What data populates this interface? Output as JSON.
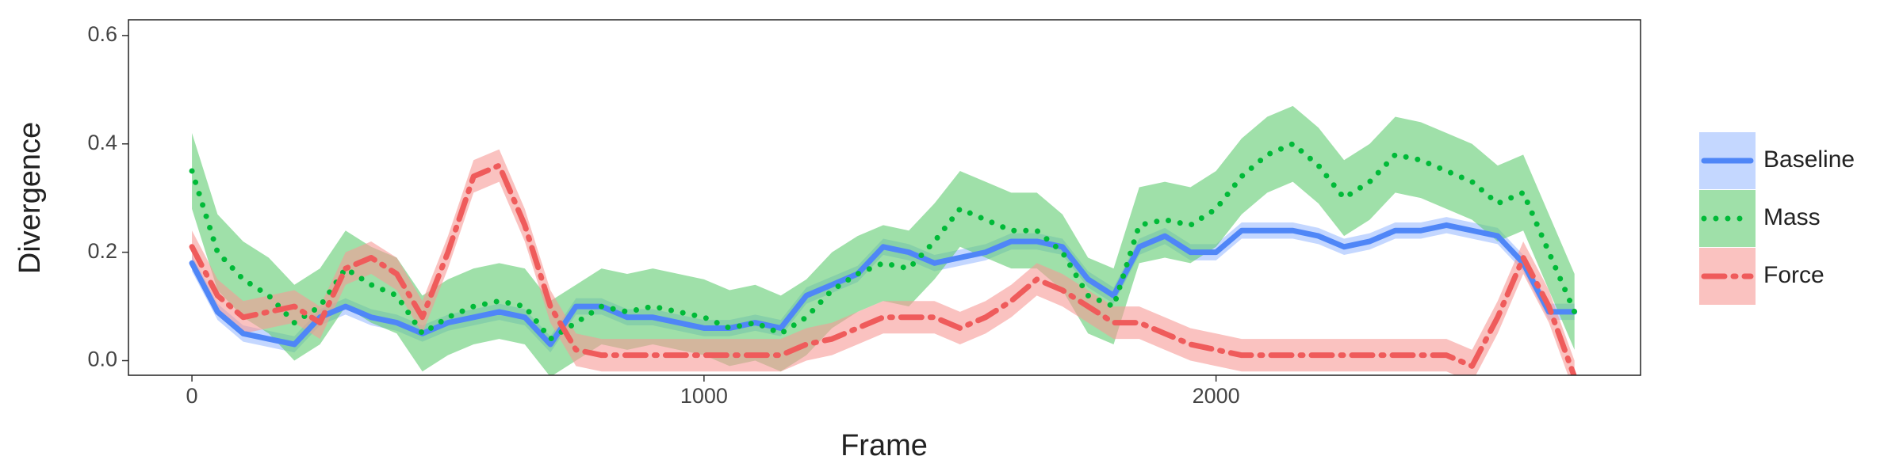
{
  "chart_data": {
    "type": "line",
    "x_label": "Frame",
    "y_label": "Divergence",
    "x": [
      0,
      50,
      100,
      150,
      200,
      250,
      300,
      350,
      400,
      450,
      500,
      550,
      600,
      650,
      700,
      750,
      800,
      850,
      900,
      950,
      1000,
      1050,
      1100,
      1150,
      1200,
      1250,
      1300,
      1350,
      1400,
      1450,
      1500,
      1550,
      1600,
      1650,
      1700,
      1750,
      1800,
      1850,
      1900,
      1950,
      2000,
      2050,
      2100,
      2150,
      2200,
      2250,
      2300,
      2350,
      2400,
      2450,
      2500,
      2550,
      2600,
      2650,
      2700
    ],
    "series": [
      {
        "name": "Baseline",
        "color": "#4f86f7",
        "band_color": "#9dbdff",
        "dash": "solid",
        "error": 0.015,
        "values": [
          0.18,
          0.09,
          0.05,
          0.04,
          0.03,
          0.08,
          0.1,
          0.08,
          0.07,
          0.05,
          0.07,
          0.08,
          0.09,
          0.08,
          0.03,
          0.1,
          0.1,
          0.08,
          0.08,
          0.07,
          0.06,
          0.06,
          0.07,
          0.06,
          0.12,
          0.14,
          0.16,
          0.21,
          0.2,
          0.18,
          0.19,
          0.2,
          0.22,
          0.22,
          0.21,
          0.15,
          0.12,
          0.21,
          0.23,
          0.2,
          0.2,
          0.24,
          0.24,
          0.24,
          0.23,
          0.21,
          0.22,
          0.24,
          0.24,
          0.25,
          0.24,
          0.23,
          0.18,
          0.09,
          0.09
        ]
      },
      {
        "name": "Mass",
        "color": "#00ba38",
        "band_color": "#5fcc70",
        "dash": "dotted",
        "error": 0.07,
        "values": [
          0.35,
          0.2,
          0.15,
          0.12,
          0.07,
          0.1,
          0.17,
          0.14,
          0.12,
          0.05,
          0.08,
          0.1,
          0.11,
          0.1,
          0.04,
          0.07,
          0.1,
          0.09,
          0.1,
          0.09,
          0.08,
          0.06,
          0.07,
          0.05,
          0.08,
          0.13,
          0.16,
          0.18,
          0.17,
          0.22,
          0.28,
          0.26,
          0.24,
          0.24,
          0.2,
          0.12,
          0.1,
          0.25,
          0.26,
          0.25,
          0.28,
          0.34,
          0.38,
          0.4,
          0.36,
          0.3,
          0.33,
          0.38,
          0.37,
          0.35,
          0.33,
          0.29,
          0.31,
          0.2,
          0.09
        ]
      },
      {
        "name": "Force",
        "color": "#ef5b5b",
        "band_color": "#f79a96",
        "dash": "dashdot",
        "error": 0.03,
        "values": [
          0.21,
          0.12,
          0.08,
          0.09,
          0.1,
          0.07,
          0.17,
          0.19,
          0.16,
          0.08,
          0.2,
          0.34,
          0.36,
          0.25,
          0.1,
          0.02,
          0.01,
          0.01,
          0.01,
          0.01,
          0.01,
          0.01,
          0.01,
          0.01,
          0.03,
          0.04,
          0.06,
          0.08,
          0.08,
          0.08,
          0.06,
          0.08,
          0.11,
          0.15,
          0.13,
          0.1,
          0.07,
          0.07,
          0.05,
          0.03,
          0.02,
          0.01,
          0.01,
          0.01,
          0.01,
          0.01,
          0.01,
          0.01,
          0.01,
          0.01,
          -0.01,
          0.08,
          0.19,
          0.1,
          -0.03
        ]
      }
    ],
    "xlim": [
      -124,
      2829
    ],
    "ylim": [
      -0.027,
      0.629
    ],
    "xticks": [
      0,
      1000,
      2000
    ],
    "yticks": [
      {
        "value": 0,
        "label": "0.0"
      },
      0.2,
      0.4,
      0.6
    ],
    "legend": "right"
  }
}
